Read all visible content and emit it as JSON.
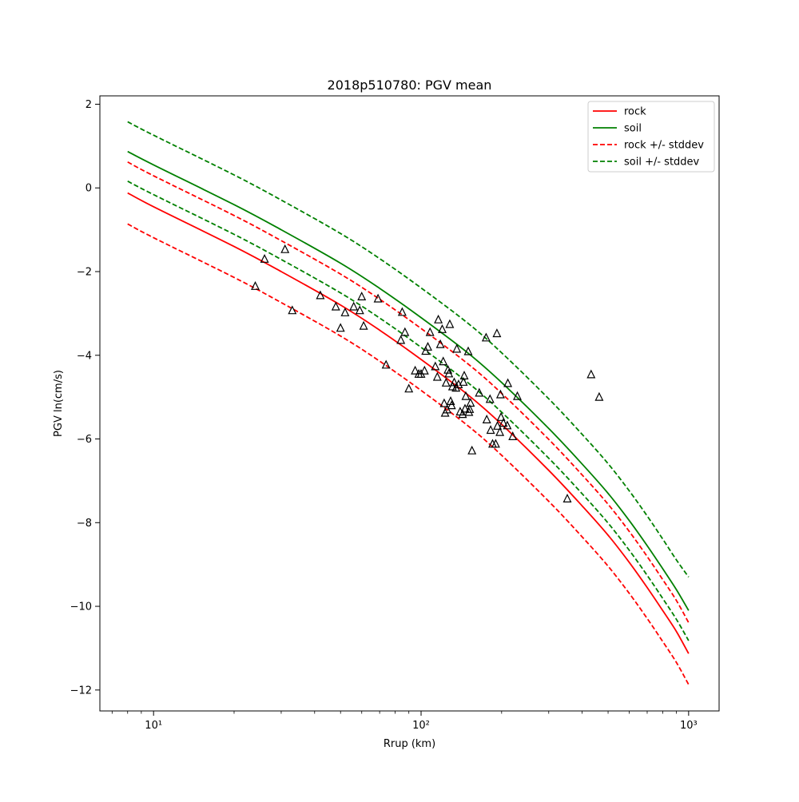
{
  "chart_data": {
    "type": "line",
    "title": "2018p510780: PGV mean",
    "xlabel": "Rrup (km)",
    "ylabel": "PGV ln(cm/s)",
    "xscale": "log",
    "xlim": [
      6.3,
      1300
    ],
    "ylim": [
      -12.5,
      2.2
    ],
    "grid": false,
    "legend_position": "top-right",
    "x_ticks": [
      {
        "value": 10,
        "label": "10¹"
      },
      {
        "value": 100,
        "label": "10²"
      },
      {
        "value": 1000,
        "label": "10³"
      }
    ],
    "y_ticks": [
      {
        "value": 2,
        "label": "2"
      },
      {
        "value": 0,
        "label": "0"
      },
      {
        "value": -2,
        "label": "−2"
      },
      {
        "value": -4,
        "label": "−4"
      },
      {
        "value": -6,
        "label": "−6"
      },
      {
        "value": -8,
        "label": "−8"
      },
      {
        "value": -10,
        "label": "−10"
      },
      {
        "value": -12,
        "label": "−12"
      }
    ],
    "series": [
      {
        "name": "rock",
        "color": "#ff0000",
        "dash": "solid",
        "x": [
          8,
          10,
          20,
          30,
          50,
          70,
          100,
          150,
          200,
          300,
          400,
          500,
          600,
          700,
          800,
          900,
          1000
        ],
        "y": [
          -0.12,
          -0.45,
          -1.4,
          -2.0,
          -2.8,
          -3.4,
          -4.1,
          -4.95,
          -5.65,
          -6.75,
          -7.6,
          -8.3,
          -8.95,
          -9.55,
          -10.1,
          -10.6,
          -11.13
        ]
      },
      {
        "name": "soil",
        "color": "#008000",
        "dash": "solid",
        "x": [
          8,
          10,
          20,
          30,
          50,
          70,
          100,
          150,
          200,
          300,
          400,
          500,
          600,
          700,
          800,
          900,
          1000
        ],
        "y": [
          0.87,
          0.55,
          -0.4,
          -1.0,
          -1.8,
          -2.4,
          -3.1,
          -3.95,
          -4.65,
          -5.75,
          -6.6,
          -7.3,
          -7.95,
          -8.55,
          -9.1,
          -9.6,
          -10.1
        ]
      },
      {
        "name": "rock +/- stddev",
        "color": "#ff0000",
        "dash": "dashed",
        "x": [
          8,
          10,
          20,
          30,
          50,
          70,
          100,
          150,
          200,
          300,
          400,
          500,
          600,
          700,
          800,
          900,
          1000
        ],
        "y": [
          0.62,
          0.29,
          -0.66,
          -1.26,
          -2.06,
          -2.66,
          -3.36,
          -4.21,
          -4.91,
          -6.01,
          -6.86,
          -7.56,
          -8.21,
          -8.81,
          -9.36,
          -9.86,
          -10.39
        ]
      },
      {
        "name": "",
        "color": "#ff0000",
        "dash": "dashed",
        "x": [
          8,
          10,
          20,
          30,
          50,
          70,
          100,
          150,
          200,
          300,
          400,
          500,
          600,
          700,
          800,
          900,
          1000
        ],
        "y": [
          -0.86,
          -1.19,
          -2.14,
          -2.74,
          -3.54,
          -4.14,
          -4.84,
          -5.69,
          -6.39,
          -7.49,
          -8.34,
          -9.04,
          -9.69,
          -10.29,
          -10.84,
          -11.34,
          -11.87
        ]
      },
      {
        "name": "soil +/- stddev",
        "color": "#008000",
        "dash": "dashed",
        "x": [
          8,
          10,
          20,
          30,
          50,
          70,
          100,
          150,
          200,
          300,
          400,
          500,
          600,
          700,
          800,
          900,
          1000
        ],
        "y": [
          1.58,
          1.26,
          0.31,
          -0.29,
          -1.09,
          -1.69,
          -2.39,
          -3.24,
          -3.94,
          -5.04,
          -5.89,
          -6.59,
          -7.24,
          -7.84,
          -8.39,
          -8.89,
          -9.3
        ]
      },
      {
        "name": "",
        "color": "#008000",
        "dash": "dashed",
        "x": [
          8,
          10,
          20,
          30,
          50,
          70,
          100,
          150,
          200,
          300,
          400,
          500,
          600,
          700,
          800,
          900,
          1000
        ],
        "y": [
          0.16,
          -0.16,
          -1.11,
          -1.71,
          -2.51,
          -3.11,
          -3.81,
          -4.66,
          -5.36,
          -6.46,
          -7.31,
          -8.01,
          -8.66,
          -9.26,
          -9.81,
          -10.31,
          -10.82
        ]
      }
    ],
    "observations": {
      "marker": "triangle",
      "color": "#000000",
      "points": [
        [
          24,
          -2.35
        ],
        [
          26,
          -1.7
        ],
        [
          31,
          -1.47
        ],
        [
          33,
          -2.93
        ],
        [
          42,
          -2.57
        ],
        [
          48,
          -2.84
        ],
        [
          50,
          -3.35
        ],
        [
          52,
          -2.98
        ],
        [
          56,
          -2.84
        ],
        [
          59,
          -2.93
        ],
        [
          60,
          -2.6
        ],
        [
          61,
          -3.3
        ],
        [
          69,
          -2.65
        ],
        [
          74,
          -4.23
        ],
        [
          84,
          -3.64
        ],
        [
          85,
          -2.97
        ],
        [
          87,
          -3.45
        ],
        [
          90,
          -4.8
        ],
        [
          95,
          -4.37
        ],
        [
          98,
          -4.45
        ],
        [
          100,
          -4.45
        ],
        [
          103,
          -4.37
        ],
        [
          104,
          -3.9
        ],
        [
          106,
          -3.8
        ],
        [
          108,
          -3.45
        ],
        [
          113,
          -4.27
        ],
        [
          115,
          -4.52
        ],
        [
          116,
          -3.15
        ],
        [
          118,
          -3.74
        ],
        [
          120,
          -3.38
        ],
        [
          121,
          -4.15
        ],
        [
          122,
          -5.15
        ],
        [
          123,
          -5.38
        ],
        [
          124,
          -4.66
        ],
        [
          125,
          -5.3
        ],
        [
          126,
          -4.35
        ],
        [
          127,
          -4.44
        ],
        [
          128,
          -3.26
        ],
        [
          129,
          -5.1
        ],
        [
          130,
          -5.2
        ],
        [
          131,
          -4.75
        ],
        [
          133,
          -4.65
        ],
        [
          135,
          -4.78
        ],
        [
          136,
          -3.85
        ],
        [
          138,
          -4.7
        ],
        [
          140,
          -5.35
        ],
        [
          143,
          -5.41
        ],
        [
          144,
          -4.64
        ],
        [
          145,
          -4.49
        ],
        [
          146,
          -5.28
        ],
        [
          147,
          -4.98
        ],
        [
          150,
          -3.91
        ],
        [
          151,
          -5.36
        ],
        [
          152,
          -5.29
        ],
        [
          153,
          -5.14
        ],
        [
          155,
          -6.28
        ],
        [
          165,
          -4.9
        ],
        [
          175,
          -3.58
        ],
        [
          176,
          -5.54
        ],
        [
          181,
          -5.05
        ],
        [
          182,
          -5.79
        ],
        [
          185,
          -6.12
        ],
        [
          190,
          -6.12
        ],
        [
          192,
          -3.48
        ],
        [
          193,
          -5.69
        ],
        [
          197,
          -5.84
        ],
        [
          198,
          -4.94
        ],
        [
          199,
          -5.48
        ],
        [
          203,
          -5.62
        ],
        [
          210,
          -5.68
        ],
        [
          211,
          -4.67
        ],
        [
          220,
          -5.94
        ],
        [
          229,
          -4.98
        ],
        [
          352,
          -7.43
        ],
        [
          432,
          -4.46
        ],
        [
          463,
          -5.0
        ]
      ]
    }
  }
}
